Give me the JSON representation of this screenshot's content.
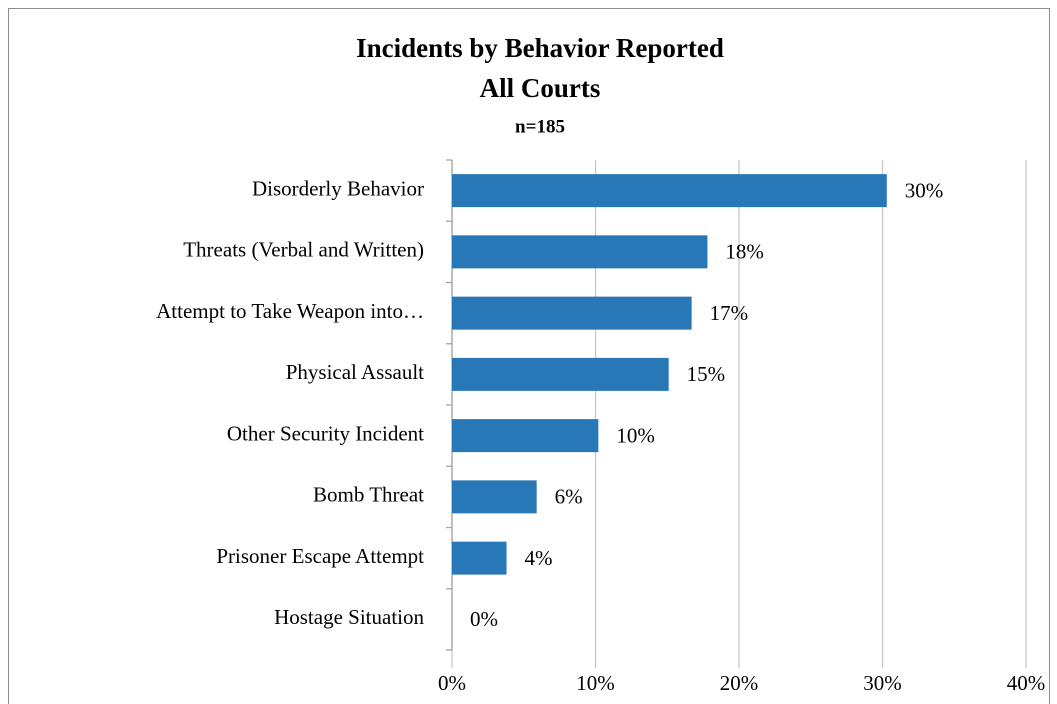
{
  "chart_data": {
    "type": "bar",
    "orientation": "horizontal",
    "title": "Incidents by Behavior Reported",
    "subtitle": "All Courts",
    "annotation": "n=185",
    "categories": [
      "Disorderly Behavior",
      "Threats (Verbal and Written)",
      "Attempt to Take Weapon into…",
      "Physical Assault",
      "Other Security Incident",
      "Bomb Threat",
      "Prisoner Escape Attempt",
      "Hostage Situation"
    ],
    "values": [
      30.3,
      17.8,
      16.7,
      15.1,
      10.2,
      5.9,
      3.8,
      0
    ],
    "value_labels": [
      "30%",
      "18%",
      "17%",
      "15%",
      "10%",
      "6%",
      "4%",
      "0%"
    ],
    "color": "#2878b8",
    "xlim": [
      0,
      40
    ],
    "xticks": [
      {
        "value": 0,
        "label": "0%"
      },
      {
        "value": 10,
        "label": "10%"
      },
      {
        "value": 20,
        "label": "20%"
      },
      {
        "value": 30,
        "label": "30%"
      },
      {
        "value": 40,
        "label": "40%"
      }
    ],
    "grid": true
  }
}
